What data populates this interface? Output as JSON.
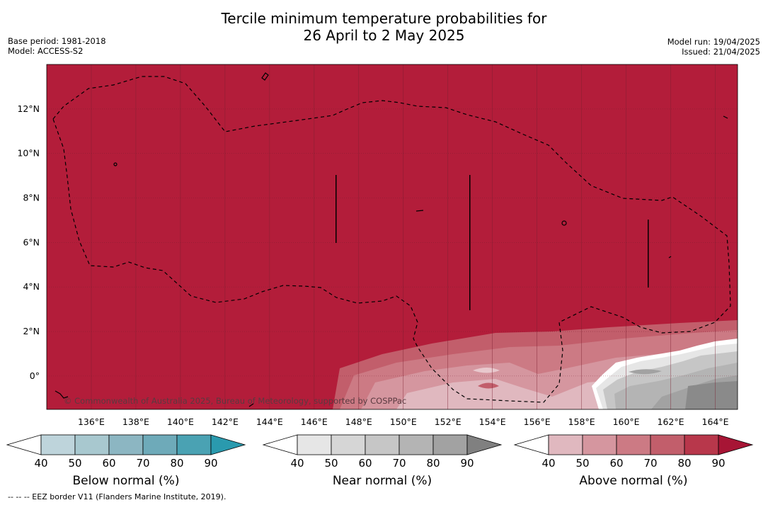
{
  "title_line1": "Tercile minimum temperature probabilities for",
  "title_line2": "26 April to 2 May 2025",
  "base_period": "Base period: 1981-2018",
  "model": "Model: ACCESS-S2",
  "model_run": "Model run: 19/04/2025",
  "issued": "Issued: 21/04/2025",
  "copyright": "© Commonwealth of Australia 2025, Bureau of Meteorology, supported by COSPPac",
  "footer": "-- -- -- EEZ border V11 (Flanders Marine Institute, 2019).",
  "map": {
    "lon_ticks": [
      "136°E",
      "138°E",
      "140°E",
      "142°E",
      "144°E",
      "146°E",
      "148°E",
      "150°E",
      "152°E",
      "154°E",
      "156°E",
      "158°E",
      "160°E",
      "162°E",
      "164°E"
    ],
    "lat_ticks": [
      "12°N",
      "10°N",
      "8°N",
      "6°N",
      "4°N",
      "2°N",
      "0°"
    ],
    "lon_range": [
      134,
      165
    ],
    "lat_range": [
      -1.5,
      14
    ]
  },
  "legends": [
    {
      "label": "Below normal (%)",
      "ticks": [
        "40",
        "50",
        "60",
        "70",
        "80",
        "90"
      ],
      "colors": [
        "#ffffff",
        "#bed4db",
        "#a8c8cf",
        "#8cb6c2",
        "#6eaab9",
        "#4aa2b3",
        "#2a9aae"
      ]
    },
    {
      "label": "Near normal (%)",
      "ticks": [
        "40",
        "50",
        "60",
        "70",
        "80",
        "90"
      ],
      "colors": [
        "#ffffff",
        "#e6e6e6",
        "#d6d6d6",
        "#c6c6c6",
        "#b4b4b4",
        "#a2a2a2",
        "#808080"
      ]
    },
    {
      "label": "Above normal (%)",
      "ticks": [
        "40",
        "50",
        "60",
        "70",
        "80",
        "90"
      ],
      "colors": [
        "#ffffff",
        "#e0b8bf",
        "#d5969f",
        "#cc7a84",
        "#c25e6b",
        "#b8374b",
        "#a71535"
      ]
    }
  ],
  "colors": {
    "dominant": "#b31d3a",
    "near_gray": "#8a8a8a",
    "grid": "#7a2030"
  }
}
